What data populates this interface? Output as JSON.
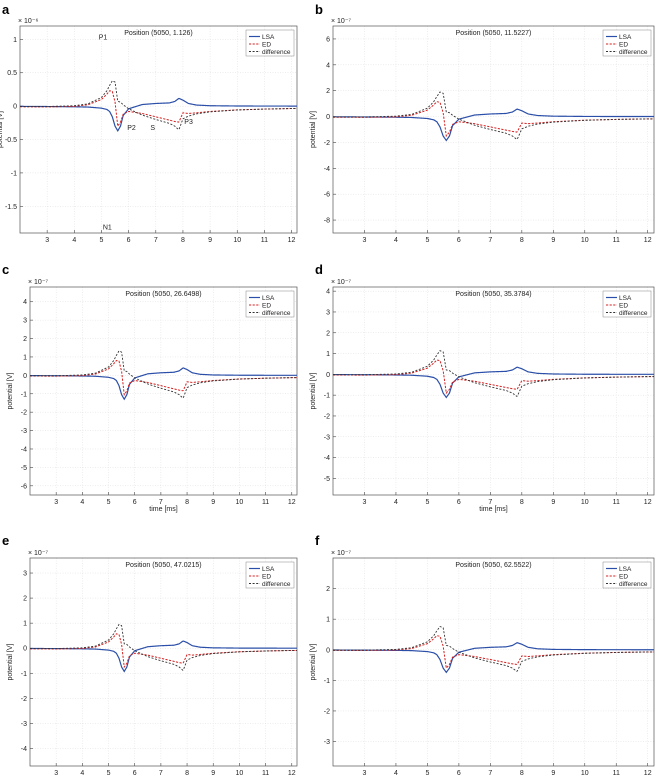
{
  "panels": [
    {
      "letter": "a",
      "title": "Position (5050, 1.126)",
      "exponent": "× 10⁻⁶",
      "xlim": [
        2,
        12.2
      ],
      "ylim": [
        -1.9,
        1.2
      ],
      "xticks": [
        "3",
        "4",
        "5",
        "6",
        "7",
        "8",
        "9",
        "10",
        "11",
        "12"
      ],
      "yticks": [
        {
          "v": 1,
          "t": "1"
        },
        {
          "v": 0.5,
          "t": "0.5"
        },
        {
          "v": 0,
          "t": "0"
        },
        {
          "v": -0.5,
          "t": "-0.5"
        },
        {
          "v": -1,
          "t": "-1"
        },
        {
          "v": -1.5,
          "t": "-1.5"
        }
      ],
      "scale": 0.2,
      "showXLabel": false,
      "annotations": [
        {
          "t": "P1",
          "x": 4.9,
          "y": 1.0
        },
        {
          "t": "P2",
          "x": 5.95,
          "y": -0.36
        },
        {
          "t": "S",
          "x": 6.8,
          "y": -0.36
        },
        {
          "t": "P3",
          "x": 8.05,
          "y": -0.27
        },
        {
          "t": "N1",
          "x": 5.05,
          "y": -1.85
        }
      ]
    },
    {
      "letter": "b",
      "title": "Position (5050, 11.5227)",
      "exponent": "× 10⁻⁷",
      "xlim": [
        2,
        12.2
      ],
      "ylim": [
        -9,
        7
      ],
      "xticks": [
        "3",
        "4",
        "5",
        "6",
        "7",
        "8",
        "9",
        "10",
        "11",
        "12"
      ],
      "yticks": [
        {
          "v": 6,
          "t": "6"
        },
        {
          "v": 4,
          "t": "4"
        },
        {
          "v": 2,
          "t": "2"
        },
        {
          "v": 0,
          "t": "0"
        },
        {
          "v": -2,
          "t": "-2"
        },
        {
          "v": -4,
          "t": "-4"
        },
        {
          "v": -6,
          "t": "-6"
        },
        {
          "v": -8,
          "t": "-8"
        }
      ],
      "scale": 1.0,
      "showXLabel": false,
      "annotations": []
    },
    {
      "letter": "c",
      "title": "Position (5050, 26.6498)",
      "exponent": "× 10⁻⁷",
      "xlim": [
        2,
        12.2
      ],
      "ylim": [
        -6.5,
        4.8
      ],
      "xticks": [
        "3",
        "4",
        "5",
        "6",
        "7",
        "8",
        "9",
        "10",
        "11",
        "12"
      ],
      "yticks": [
        {
          "v": 4,
          "t": "4"
        },
        {
          "v": 3,
          "t": "3"
        },
        {
          "v": 2,
          "t": "2"
        },
        {
          "v": 1,
          "t": "1"
        },
        {
          "v": 0,
          "t": "0"
        },
        {
          "v": -1,
          "t": "-1"
        },
        {
          "v": -2,
          "t": "-2"
        },
        {
          "v": -3,
          "t": "-3"
        },
        {
          "v": -4,
          "t": "-4"
        },
        {
          "v": -5,
          "t": "-5"
        },
        {
          "v": -6,
          "t": "-6"
        }
      ],
      "scale": 0.7,
      "showXLabel": true,
      "annotations": []
    },
    {
      "letter": "d",
      "title": "Position (5050, 35.3784)",
      "exponent": "× 10⁻⁷",
      "xlim": [
        2,
        12.2
      ],
      "ylim": [
        -5.8,
        4.2
      ],
      "xticks": [
        "3",
        "4",
        "5",
        "6",
        "7",
        "8",
        "9",
        "10",
        "11",
        "12"
      ],
      "yticks": [
        {
          "v": 4,
          "t": "4"
        },
        {
          "v": 3,
          "t": "3"
        },
        {
          "v": 2,
          "t": "2"
        },
        {
          "v": 1,
          "t": "1"
        },
        {
          "v": 0,
          "t": "0"
        },
        {
          "v": -1,
          "t": "-1"
        },
        {
          "v": -2,
          "t": "-2"
        },
        {
          "v": -3,
          "t": "-3"
        },
        {
          "v": -4,
          "t": "-4"
        },
        {
          "v": -5,
          "t": "-5"
        }
      ],
      "scale": 0.6,
      "showXLabel": true,
      "annotations": []
    },
    {
      "letter": "e",
      "title": "Position (5050, 47.0215)",
      "exponent": "× 10⁻⁷",
      "xlim": [
        2,
        12.2
      ],
      "ylim": [
        -4.7,
        3.6
      ],
      "xticks": [
        "3",
        "4",
        "5",
        "6",
        "7",
        "8",
        "9",
        "10",
        "11",
        "12"
      ],
      "yticks": [
        {
          "v": 3,
          "t": "3"
        },
        {
          "v": 2,
          "t": "2"
        },
        {
          "v": 1,
          "t": "1"
        },
        {
          "v": 0,
          "t": "0"
        },
        {
          "v": -1,
          "t": "-1"
        },
        {
          "v": -2,
          "t": "-2"
        },
        {
          "v": -3,
          "t": "-3"
        },
        {
          "v": -4,
          "t": "-4"
        }
      ],
      "scale": 0.5,
      "showXLabel": true,
      "annotations": []
    },
    {
      "letter": "f",
      "title": "Position (5050, 62.5522)",
      "exponent": "× 10⁻⁷",
      "xlim": [
        2,
        12.2
      ],
      "ylim": [
        -3.8,
        3.0
      ],
      "xticks": [
        "3",
        "4",
        "5",
        "6",
        "7",
        "8",
        "9",
        "10",
        "11",
        "12"
      ],
      "yticks": [
        {
          "v": 2,
          "t": "2"
        },
        {
          "v": 1,
          "t": "1"
        },
        {
          "v": 0,
          "t": "0"
        },
        {
          "v": -1,
          "t": "-1"
        },
        {
          "v": -2,
          "t": "-2"
        },
        {
          "v": -3,
          "t": "-3"
        }
      ],
      "scale": 0.4,
      "showXLabel": true,
      "annotations": []
    }
  ],
  "chart_data": {
    "type": "line",
    "xlabel": "time [ms]",
    "ylabel": "potential [V]",
    "grid": true,
    "legend": "top-right",
    "series_names": [
      "LSA",
      "ED",
      "difference"
    ],
    "colors": {
      "LSA": "#2b4fa8",
      "ED": "#d42020",
      "difference": "#333333"
    },
    "series_shape": {
      "x": [
        2,
        3,
        4,
        4.5,
        5,
        5.2,
        5.3,
        5.4,
        5.5,
        5.6,
        5.7,
        5.8,
        6,
        6.5,
        7,
        7.5,
        7.7,
        7.85,
        8,
        8.2,
        8.5,
        9,
        10,
        11,
        12
      ],
      "LSA": [
        -0.02,
        -0.03,
        -0.05,
        -0.07,
        -0.15,
        -0.25,
        -0.4,
        -0.8,
        -1.5,
        -1.85,
        -1.5,
        -0.7,
        -0.2,
        0.12,
        0.2,
        0.24,
        0.35,
        0.58,
        0.45,
        0.2,
        0.08,
        0.03,
        0.01,
        0.005,
        0.003
      ],
      "ED": [
        -0.05,
        -0.06,
        -0.02,
        0.1,
        0.5,
        0.9,
        1.15,
        1.1,
        0.3,
        -1.5,
        -1.2,
        -0.6,
        -0.4,
        -0.55,
        -0.8,
        -1.05,
        -1.15,
        -1.2,
        -0.5,
        -0.55,
        -0.5,
        -0.4,
        -0.28,
        -0.22,
        -0.18
      ],
      "difference": [
        -0.03,
        -0.03,
        0.03,
        0.17,
        0.65,
        1.15,
        1.55,
        1.9,
        1.8,
        0.35,
        0.3,
        0.1,
        -0.2,
        -0.67,
        -1.0,
        -1.29,
        -1.5,
        -1.78,
        -0.95,
        -0.75,
        -0.58,
        -0.43,
        -0.29,
        -0.22,
        -0.18
      ]
    }
  }
}
